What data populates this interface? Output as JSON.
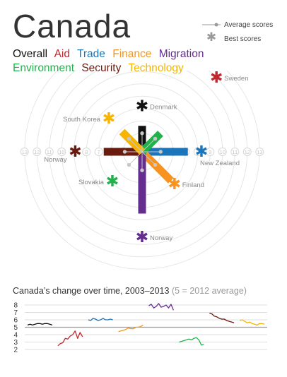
{
  "title": "Canada",
  "categories": [
    {
      "key": "overall",
      "label": "Overall",
      "color": "#111111"
    },
    {
      "key": "aid",
      "label": "Aid",
      "color": "#c1272d"
    },
    {
      "key": "trade",
      "label": "Trade",
      "color": "#1b75bb"
    },
    {
      "key": "finance",
      "label": "Finance",
      "color": "#f7931e"
    },
    {
      "key": "migration",
      "label": "Migration",
      "color": "#662d91"
    },
    {
      "key": "environment",
      "label": "Environment",
      "color": "#22b14c"
    },
    {
      "key": "security",
      "label": "Security",
      "color": "#6b1a0f"
    },
    {
      "key": "technology",
      "label": "Technology",
      "color": "#f7b500"
    }
  ],
  "legend": {
    "average": "Average scores",
    "best": "Best scores",
    "average_mark": "●",
    "best_mark": "✱"
  },
  "radial_ticks": [
    "2",
    "4",
    "5",
    "6",
    "7",
    "8",
    "9",
    "10",
    "11",
    "12",
    "13"
  ],
  "chart_data": {
    "type": "radial-bar",
    "center_value": 3.5,
    "max_value": 13,
    "axes": [
      {
        "key": "overall",
        "angle": 0,
        "score": 5.6,
        "average": 5,
        "best_country": "Denmark",
        "best_score": 7.2
      },
      {
        "key": "aid",
        "angle": 45,
        "score": 4.2,
        "average": 5,
        "best_country": "Sweden",
        "best_score": 12
      },
      {
        "key": "trade",
        "angle": 90,
        "score": 7.2,
        "average": 5,
        "best_country": "New Zealand",
        "best_score": 8.3
      },
      {
        "key": "finance",
        "angle": 135,
        "score": 6.8,
        "average": 5,
        "best_country": "Finland",
        "best_score": 7.2
      },
      {
        "key": "migration",
        "angle": 180,
        "score": 8.5,
        "average": 5,
        "best_country": "Norway",
        "best_score": 10.4
      },
      {
        "key": "environment",
        "angle": 225,
        "score": 1.4,
        "average": 5,
        "best_country": "Slovakia",
        "best_score": 6.9
      },
      {
        "key": "security",
        "angle": 270,
        "score": 6.6,
        "average": 4.9,
        "best_country": "Norway",
        "best_score": 8.9
      },
      {
        "key": "technology",
        "angle": 315,
        "score": 5.8,
        "average": 5,
        "best_country": "South Korea",
        "best_score": 7.3
      }
    ],
    "timeseries": {
      "title": "Canada’s change over time, 2003–2013",
      "note": "(5 = 2012 average)",
      "y_ticks": [
        2,
        3,
        4,
        5,
        6,
        7,
        8
      ],
      "ylim": [
        2,
        8
      ],
      "series": [
        {
          "key": "overall",
          "values": [
            5.3,
            5.4,
            5.3,
            5.4,
            5.5,
            5.5,
            5.4,
            5.5,
            5.5,
            5.4,
            5.3
          ]
        },
        {
          "key": "aid",
          "values": [
            2.5,
            2.8,
            2.9,
            3.5,
            3.4,
            3.8,
            4.0,
            4.5,
            3.5,
            4.3,
            3.7
          ]
        },
        {
          "key": "trade",
          "values": [
            6.0,
            5.9,
            6.2,
            6.1,
            5.9,
            6.0,
            6.2,
            6.0,
            6.0,
            6.1,
            6.0
          ]
        },
        {
          "key": "finance",
          "values": [
            4.4,
            4.5,
            4.6,
            4.7,
            4.9,
            4.8,
            4.8,
            5.0,
            5.0,
            5.1,
            5.3
          ]
        },
        {
          "key": "migration",
          "values": [
            7.9,
            8.1,
            7.6,
            7.8,
            8.2,
            7.7,
            7.8,
            8.0,
            7.6,
            8.1,
            7.3
          ]
        },
        {
          "key": "environment",
          "values": [
            3.0,
            3.1,
            3.2,
            3.3,
            3.4,
            3.3,
            3.5,
            3.6,
            3.3,
            2.6,
            2.7
          ]
        },
        {
          "key": "security",
          "values": [
            6.9,
            6.8,
            6.5,
            6.4,
            6.2,
            6.1,
            6.1,
            5.9,
            5.8,
            5.7,
            5.6
          ]
        },
        {
          "key": "technology",
          "values": [
            5.9,
            6.0,
            5.8,
            5.6,
            5.7,
            5.5,
            5.4,
            5.3,
            5.5,
            5.5,
            5.4
          ]
        }
      ]
    }
  }
}
